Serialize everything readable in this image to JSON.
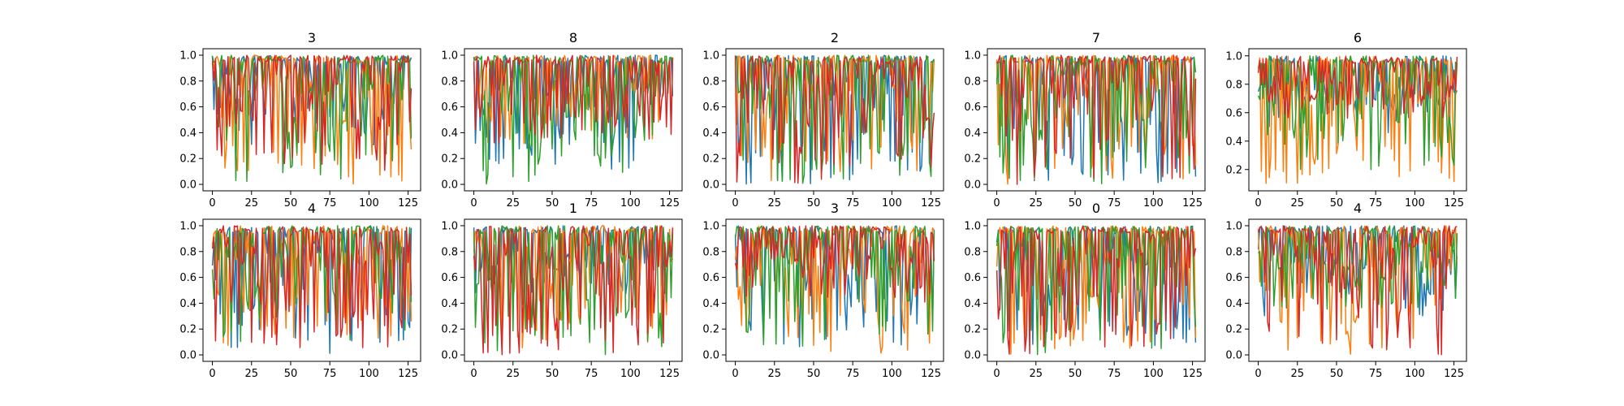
{
  "chart_data": {
    "type": "line",
    "layout": "2 rows x 5 columns of small multiples",
    "x_axis": {
      "lim": [
        -6,
        133
      ],
      "ticks": [
        0,
        25,
        50,
        75,
        100,
        125
      ]
    },
    "series_colors": [
      "#1f77b4",
      "#ff7f0e",
      "#2ca02c",
      "#d62728"
    ],
    "series_count_per_panel": 4,
    "points_per_series": 128,
    "legend": "none",
    "grid": false,
    "panels": [
      {
        "title": "3",
        "ylim": [
          -0.05,
          1.05
        ],
        "yticks": [
          "0.0",
          "0.2",
          "0.4",
          "0.6",
          "0.8",
          "1.0"
        ],
        "ytick_values": [
          0,
          0.2,
          0.4,
          0.6,
          0.8,
          1.0
        ],
        "series_summary": [
          {
            "min": 0.3,
            "max": 1.0
          },
          {
            "min": 0.0,
            "max": 1.0
          },
          {
            "min": 0.0,
            "max": 1.0
          },
          {
            "min": 0.1,
            "max": 1.0
          }
        ]
      },
      {
        "title": "8",
        "ylim": [
          -0.05,
          1.05
        ],
        "yticks": [
          "0.0",
          "0.2",
          "0.4",
          "0.6",
          "0.8",
          "1.0"
        ],
        "ytick_values": [
          0,
          0.2,
          0.4,
          0.6,
          0.8,
          1.0
        ],
        "series_summary": [
          {
            "min": 0.1,
            "max": 1.0
          },
          {
            "min": 0.3,
            "max": 1.0
          },
          {
            "min": 0.0,
            "max": 1.0
          },
          {
            "min": 0.3,
            "max": 1.0
          }
        ]
      },
      {
        "title": "2",
        "ylim": [
          -0.05,
          1.05
        ],
        "yticks": [
          "0.0",
          "0.2",
          "0.4",
          "0.6",
          "0.8",
          "1.0"
        ],
        "ytick_values": [
          0,
          0.2,
          0.4,
          0.6,
          0.8,
          1.0
        ],
        "series_summary": [
          {
            "min": 0.0,
            "max": 1.0
          },
          {
            "min": 0.0,
            "max": 1.0
          },
          {
            "min": 0.0,
            "max": 1.0
          },
          {
            "min": 0.0,
            "max": 1.0
          }
        ]
      },
      {
        "title": "7",
        "ylim": [
          -0.05,
          1.05
        ],
        "yticks": [
          "0.0",
          "0.2",
          "0.4",
          "0.6",
          "0.8",
          "1.0"
        ],
        "ytick_values": [
          0,
          0.2,
          0.4,
          0.6,
          0.8,
          1.0
        ],
        "series_summary": [
          {
            "min": 0.0,
            "max": 1.0
          },
          {
            "min": 0.0,
            "max": 1.0
          },
          {
            "min": 0.0,
            "max": 1.0
          },
          {
            "min": 0.0,
            "max": 1.0
          }
        ]
      },
      {
        "title": "6",
        "ylim": [
          0.05,
          1.05
        ],
        "yticks": [
          "0.2",
          "0.4",
          "0.6",
          "0.8",
          "1.0"
        ],
        "ytick_values": [
          0.2,
          0.4,
          0.6,
          0.8,
          1.0
        ],
        "series_summary": [
          {
            "min": 0.45,
            "max": 1.0
          },
          {
            "min": 0.1,
            "max": 1.0
          },
          {
            "min": 0.15,
            "max": 1.0
          },
          {
            "min": 0.55,
            "max": 1.0
          }
        ]
      },
      {
        "title": "4",
        "ylim": [
          -0.05,
          1.05
        ],
        "yticks": [
          "0.0",
          "0.2",
          "0.4",
          "0.6",
          "0.8",
          "1.0"
        ],
        "ytick_values": [
          0,
          0.2,
          0.4,
          0.6,
          0.8,
          1.0
        ],
        "series_summary": [
          {
            "min": 0.0,
            "max": 1.0
          },
          {
            "min": 0.0,
            "max": 1.0
          },
          {
            "min": 0.1,
            "max": 1.0
          },
          {
            "min": 0.05,
            "max": 1.0
          }
        ]
      },
      {
        "title": "1",
        "ylim": [
          -0.05,
          1.05
        ],
        "yticks": [
          "0.0",
          "0.2",
          "0.4",
          "0.6",
          "0.8",
          "1.0"
        ],
        "ytick_values": [
          0,
          0.2,
          0.4,
          0.6,
          0.8,
          1.0
        ],
        "series_summary": [
          {
            "min": 0.45,
            "max": 1.0
          },
          {
            "min": 0.05,
            "max": 1.0
          },
          {
            "min": 0.0,
            "max": 1.0
          },
          {
            "min": 0.0,
            "max": 1.0
          }
        ]
      },
      {
        "title": "3",
        "ylim": [
          -0.05,
          1.05
        ],
        "yticks": [
          "0.0",
          "0.2",
          "0.4",
          "0.6",
          "0.8",
          "1.0"
        ],
        "ytick_values": [
          0,
          0.2,
          0.4,
          0.6,
          0.8,
          1.0
        ],
        "series_summary": [
          {
            "min": 0.05,
            "max": 1.0
          },
          {
            "min": 0.0,
            "max": 1.0
          },
          {
            "min": 0.05,
            "max": 1.0
          },
          {
            "min": 0.4,
            "max": 1.0
          }
        ]
      },
      {
        "title": "0",
        "ylim": [
          -0.05,
          1.05
        ],
        "yticks": [
          "0.0",
          "0.2",
          "0.4",
          "0.6",
          "0.8",
          "1.0"
        ],
        "ytick_values": [
          0,
          0.2,
          0.4,
          0.6,
          0.8,
          1.0
        ],
        "series_summary": [
          {
            "min": 0.05,
            "max": 1.0
          },
          {
            "min": 0.0,
            "max": 1.0
          },
          {
            "min": 0.0,
            "max": 1.0
          },
          {
            "min": 0.0,
            "max": 1.0
          }
        ]
      },
      {
        "title": "4",
        "ylim": [
          -0.05,
          1.05
        ],
        "yticks": [
          "0.0",
          "0.2",
          "0.4",
          "0.6",
          "0.8",
          "1.0"
        ],
        "ytick_values": [
          0,
          0.2,
          0.4,
          0.6,
          0.8,
          1.0
        ],
        "series_summary": [
          {
            "min": 0.3,
            "max": 1.0
          },
          {
            "min": 0.0,
            "max": 1.0
          },
          {
            "min": 0.35,
            "max": 1.0
          },
          {
            "min": 0.0,
            "max": 1.0
          }
        ]
      }
    ]
  }
}
